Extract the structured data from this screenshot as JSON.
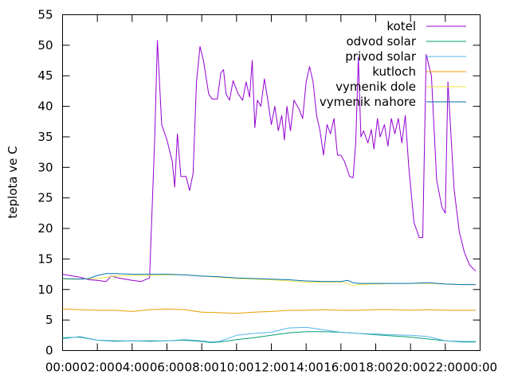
{
  "chart_data": {
    "type": "line",
    "title": "",
    "xlabel": "",
    "ylabel": "teplota ve C",
    "x_unit": "hours of day",
    "xlim": [
      0,
      24
    ],
    "ylim": [
      0,
      55
    ],
    "grid": false,
    "legend_position": "top-right",
    "x_ticks": [
      {
        "value": 0,
        "label": "00:00"
      },
      {
        "value": 2,
        "label": "02:00"
      },
      {
        "value": 4,
        "label": "04:00"
      },
      {
        "value": 6,
        "label": "06:00"
      },
      {
        "value": 8,
        "label": "08:00"
      },
      {
        "value": 10,
        "label": "10:00"
      },
      {
        "value": 12,
        "label": "12:00"
      },
      {
        "value": 14,
        "label": "14:00"
      },
      {
        "value": 16,
        "label": "16:00"
      },
      {
        "value": 18,
        "label": "18:00"
      },
      {
        "value": 20,
        "label": "20:00"
      },
      {
        "value": 22,
        "label": "22:00"
      },
      {
        "value": 24,
        "label": "00:00"
      }
    ],
    "y_ticks": [
      0,
      5,
      10,
      15,
      20,
      25,
      30,
      35,
      40,
      45,
      50,
      55
    ],
    "series": [
      {
        "name": "kotel",
        "color": "#9400d3",
        "points": [
          [
            0,
            12.5
          ],
          [
            1,
            12
          ],
          [
            1.5,
            11.6
          ],
          [
            2,
            11.5
          ],
          [
            2.5,
            11.3
          ],
          [
            2.8,
            12.2
          ],
          [
            3.2,
            11.9
          ],
          [
            4,
            11.5
          ],
          [
            4.5,
            11.3
          ],
          [
            5,
            11.9
          ],
          [
            5.3,
            35
          ],
          [
            5.45,
            50.8
          ],
          [
            5.7,
            37
          ],
          [
            6,
            34.5
          ],
          [
            6.3,
            31
          ],
          [
            6.45,
            26.8
          ],
          [
            6.6,
            35.5
          ],
          [
            6.8,
            28.5
          ],
          [
            7.1,
            28.5
          ],
          [
            7.3,
            26.2
          ],
          [
            7.5,
            29
          ],
          [
            7.7,
            44
          ],
          [
            7.9,
            49.8
          ],
          [
            8.1,
            47.5
          ],
          [
            8.4,
            42
          ],
          [
            8.6,
            41.2
          ],
          [
            8.9,
            41.2
          ],
          [
            9.1,
            45.5
          ],
          [
            9.25,
            46
          ],
          [
            9.4,
            42
          ],
          [
            9.6,
            41
          ],
          [
            9.8,
            44.2
          ],
          [
            10.1,
            42
          ],
          [
            10.35,
            41
          ],
          [
            10.55,
            44
          ],
          [
            10.75,
            41.5
          ],
          [
            10.9,
            47.5
          ],
          [
            11.05,
            36.5
          ],
          [
            11.2,
            41
          ],
          [
            11.4,
            40
          ],
          [
            11.6,
            44.5
          ],
          [
            11.8,
            41
          ],
          [
            12,
            37
          ],
          [
            12.2,
            40
          ],
          [
            12.4,
            36
          ],
          [
            12.6,
            38.5
          ],
          [
            12.75,
            34.5
          ],
          [
            12.9,
            40
          ],
          [
            13.1,
            36
          ],
          [
            13.3,
            41
          ],
          [
            13.6,
            39.5
          ],
          [
            13.8,
            38
          ],
          [
            14,
            44
          ],
          [
            14.2,
            46.5
          ],
          [
            14.4,
            44
          ],
          [
            14.6,
            38.5
          ],
          [
            14.8,
            36
          ],
          [
            15,
            32
          ],
          [
            15.2,
            37
          ],
          [
            15.4,
            35.5
          ],
          [
            15.6,
            38
          ],
          [
            15.8,
            32
          ],
          [
            16,
            32
          ],
          [
            16.2,
            31
          ],
          [
            16.5,
            28.5
          ],
          [
            16.7,
            28.3
          ],
          [
            16.85,
            34
          ],
          [
            17,
            48
          ],
          [
            17.15,
            35
          ],
          [
            17.3,
            36
          ],
          [
            17.55,
            34
          ],
          [
            17.75,
            36.2
          ],
          [
            17.9,
            33
          ],
          [
            18.1,
            38
          ],
          [
            18.25,
            35
          ],
          [
            18.5,
            37
          ],
          [
            18.7,
            33.5
          ],
          [
            18.9,
            38
          ],
          [
            19.1,
            35.5
          ],
          [
            19.3,
            38
          ],
          [
            19.5,
            34
          ],
          [
            19.7,
            38.5
          ],
          [
            19.9,
            30
          ],
          [
            20.2,
            21
          ],
          [
            20.5,
            18.5
          ],
          [
            20.7,
            18.5
          ],
          [
            20.9,
            48.5
          ],
          [
            21.2,
            45
          ],
          [
            21.5,
            28
          ],
          [
            21.8,
            23.5
          ],
          [
            22,
            22.5
          ],
          [
            22.15,
            44
          ],
          [
            22.5,
            26.5
          ],
          [
            22.8,
            19.5
          ],
          [
            23.1,
            16
          ],
          [
            23.4,
            14
          ],
          [
            23.75,
            13
          ]
        ]
      },
      {
        "name": "odvod solar",
        "color": "#009e73",
        "points": [
          [
            0,
            2.1
          ],
          [
            1,
            2.2
          ],
          [
            2,
            1.7
          ],
          [
            3,
            1.6
          ],
          [
            4,
            1.6
          ],
          [
            5,
            1.6
          ],
          [
            6,
            1.6
          ],
          [
            7,
            1.7
          ],
          [
            8,
            1.5
          ],
          [
            8.5,
            1.3
          ],
          [
            9,
            1.4
          ],
          [
            10,
            1.8
          ],
          [
            11,
            2.1
          ],
          [
            12,
            2.5
          ],
          [
            13,
            2.9
          ],
          [
            14,
            3.1
          ],
          [
            15,
            3.1
          ],
          [
            16,
            3
          ],
          [
            17,
            2.8
          ],
          [
            18,
            2.6
          ],
          [
            19,
            2.4
          ],
          [
            20,
            2.2
          ],
          [
            21,
            1.9
          ],
          [
            22,
            1.6
          ],
          [
            23,
            1.4
          ],
          [
            23.75,
            1.4
          ]
        ]
      },
      {
        "name": "privod solar",
        "color": "#56b4e9",
        "points": [
          [
            0,
            1.9
          ],
          [
            1,
            2.3
          ],
          [
            2,
            1.7
          ],
          [
            3,
            1.5
          ],
          [
            4,
            1.6
          ],
          [
            5,
            1.5
          ],
          [
            6,
            1.6
          ],
          [
            7,
            1.8
          ],
          [
            8,
            1.6
          ],
          [
            8.5,
            1.4
          ],
          [
            9,
            1.5
          ],
          [
            10,
            2.5
          ],
          [
            11,
            2.8
          ],
          [
            12,
            3
          ],
          [
            13,
            3.7
          ],
          [
            14,
            3.8
          ],
          [
            15,
            3.4
          ],
          [
            16,
            3
          ],
          [
            17,
            2.8
          ],
          [
            18,
            2.7
          ],
          [
            19,
            2.6
          ],
          [
            20,
            2.5
          ],
          [
            21,
            2.3
          ],
          [
            22,
            1.6
          ],
          [
            23,
            1.5
          ],
          [
            23.75,
            1.5
          ]
        ]
      },
      {
        "name": "kutloch",
        "color": "#e69f00",
        "points": [
          [
            0,
            6.8
          ],
          [
            1,
            6.7
          ],
          [
            2,
            6.6
          ],
          [
            3,
            6.6
          ],
          [
            4,
            6.4
          ],
          [
            5,
            6.7
          ],
          [
            6,
            6.8
          ],
          [
            7,
            6.7
          ],
          [
            8,
            6.3
          ],
          [
            9,
            6.2
          ],
          [
            10,
            6.1
          ],
          [
            11,
            6.3
          ],
          [
            12,
            6.4
          ],
          [
            13,
            6.6
          ],
          [
            14,
            6.6
          ],
          [
            15,
            6.7
          ],
          [
            16,
            6.6
          ],
          [
            17,
            6.6
          ],
          [
            18,
            6.7
          ],
          [
            19,
            6.7
          ],
          [
            20,
            6.6
          ],
          [
            21,
            6.7
          ],
          [
            22,
            6.6
          ],
          [
            23,
            6.6
          ],
          [
            23.75,
            6.6
          ]
        ]
      },
      {
        "name": "vymenik dole",
        "color": "#f0e442",
        "points": [
          [
            0,
            11.7
          ],
          [
            1,
            11.7
          ],
          [
            2,
            11.8
          ],
          [
            3,
            12.2
          ],
          [
            4,
            12.3
          ],
          [
            5,
            12.3
          ],
          [
            6,
            12.4
          ],
          [
            7,
            12.4
          ],
          [
            8,
            12.2
          ],
          [
            9,
            12
          ],
          [
            10,
            11.8
          ],
          [
            11,
            11.7
          ],
          [
            12,
            11.6
          ],
          [
            13,
            11.4
          ],
          [
            14,
            11.2
          ],
          [
            15,
            11.2
          ],
          [
            16,
            11.2
          ],
          [
            16.4,
            11
          ],
          [
            16.7,
            10.6
          ],
          [
            17,
            10.8
          ],
          [
            18,
            10.9
          ],
          [
            19,
            11
          ],
          [
            20,
            11
          ],
          [
            21,
            11
          ],
          [
            22,
            10.9
          ],
          [
            23,
            10.8
          ],
          [
            23.75,
            10.8
          ]
        ]
      },
      {
        "name": "vymenik nahore",
        "color": "#0072b2",
        "points": [
          [
            0,
            11.8
          ],
          [
            1,
            11.7
          ],
          [
            1.5,
            11.8
          ],
          [
            2,
            12.3
          ],
          [
            2.5,
            12.6
          ],
          [
            3,
            12.6
          ],
          [
            4,
            12.5
          ],
          [
            5,
            12.5
          ],
          [
            6,
            12.5
          ],
          [
            7,
            12.4
          ],
          [
            8,
            12.2
          ],
          [
            9,
            12.1
          ],
          [
            10,
            11.9
          ],
          [
            11,
            11.8
          ],
          [
            12,
            11.7
          ],
          [
            13,
            11.6
          ],
          [
            14,
            11.4
          ],
          [
            15,
            11.3
          ],
          [
            16,
            11.3
          ],
          [
            16.4,
            11.5
          ],
          [
            16.7,
            11.1
          ],
          [
            17,
            11
          ],
          [
            18,
            11
          ],
          [
            19,
            11
          ],
          [
            20,
            11
          ],
          [
            21,
            11.1
          ],
          [
            22,
            10.9
          ],
          [
            23,
            10.8
          ],
          [
            23.75,
            10.8
          ]
        ]
      }
    ]
  }
}
